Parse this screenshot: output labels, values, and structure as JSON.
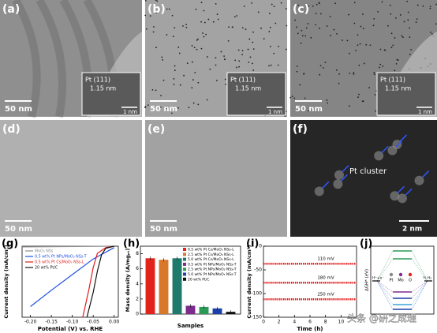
{
  "panels": [
    {
      "label": "(a)",
      "scale_bar": "50 nm",
      "inset": {
        "plane": "Pt (111)",
        "spacing": "1.15 nm",
        "scale_bar": "1 nm"
      }
    },
    {
      "label": "(b)",
      "scale_bar": "50 nm",
      "inset": {
        "plane": "Pt (111)",
        "spacing": "1.15 nm",
        "scale_bar": "1 nm"
      }
    },
    {
      "label": "(c)",
      "scale_bar": "50 nm",
      "inset": {
        "plane": "Pt (111)",
        "spacing": "1.15 nm",
        "scale_bar": "1 nm"
      }
    },
    {
      "label": "(d)",
      "scale_bar": "50 nm"
    },
    {
      "label": "(e)",
      "scale_bar": "50 nm"
    },
    {
      "label": "(f)",
      "annotation": "Pt cluster",
      "scale_bar": "2 nm"
    }
  ],
  "chart_data": [
    {
      "type": "line",
      "label": "(g)",
      "x_label": "Potential (V) vs. RHE",
      "y_label": "Current density (mA/cm²)",
      "xlim": [
        -0.22,
        0.01
      ],
      "ylim": [
        -100,
        0
      ],
      "xticks": [
        {
          "value": -0.2,
          "label": "-0.20"
        },
        {
          "value": -0.15,
          "label": "-0.15"
        },
        {
          "value": -0.1,
          "label": "-0.10"
        },
        {
          "value": -0.05,
          "label": "-0.05"
        },
        {
          "value": 0,
          "label": "0.00"
        }
      ],
      "legend": "upper left",
      "series": [
        {
          "name": "MoO₃ NSs",
          "color": "#8c8c8c",
          "x": [
            -0.22,
            0
          ],
          "values": [
            -1,
            0
          ]
        },
        {
          "name": "0.5 wt% Pt NPs/MoO₃ NSs-T",
          "color": "#1f4fe0",
          "x": [
            -0.2,
            -0.15,
            -0.1,
            -0.05,
            0
          ],
          "values": [
            -85,
            -62,
            -40,
            -18,
            -2
          ]
        },
        {
          "name": "0.5 wt% Pt Cs/MoO₃ NSs-L",
          "color": "#e01b1b",
          "x": [
            -0.075,
            -0.06,
            -0.05,
            -0.04,
            -0.02,
            0
          ],
          "values": [
            -100,
            -60,
            -30,
            -10,
            -2,
            0
          ]
        },
        {
          "name": "20 wt% Pt/C",
          "color": "#111111",
          "x": [
            -0.065,
            -0.05,
            -0.04,
            -0.03,
            -0.02,
            0
          ],
          "values": [
            -100,
            -65,
            -35,
            -12,
            -3,
            0
          ]
        }
      ]
    },
    {
      "type": "bar",
      "label": "(h)",
      "x_label": "Samples",
      "y_label": "Mass density (A/mgₚₜ)",
      "ylim": [
        0,
        9
      ],
      "yticks": [
        0,
        2,
        4,
        6,
        8
      ],
      "categories": [
        "0.5 wt% Pt Cs/MoO₃ NSs-L",
        "2.5 wt% Pt Cs/MoO₃ NSs-L",
        "5.0 wt% Pt Cs/MoO₃ NSs-L",
        "0.5 wt% Pt NPs/MoO₃ NSs-T",
        "2.5 wt% Pt NPs/MoO₃ NSs-T",
        "5.0 wt% Pt NPs/MoO₃ NSs-T",
        "20 wt% Pt/C"
      ],
      "values": [
        7.4,
        7.2,
        7.4,
        1.1,
        0.95,
        0.75,
        0.3
      ],
      "colors": [
        "#e2231a",
        "#d9782a",
        "#1f7a6b",
        "#7b2c8e",
        "#2a9a56",
        "#1d3fa8",
        "#111111"
      ]
    },
    {
      "type": "line",
      "label": "(i)",
      "x_label": "Time (h)",
      "y_label": "Current density (mA/cm²)",
      "xlim": [
        0,
        12
      ],
      "ylim": [
        -150,
        0
      ],
      "xticks": [
        0,
        2,
        4,
        6,
        8,
        10
      ],
      "yticks": [
        0,
        -50,
        -100,
        -150
      ],
      "series": [
        {
          "name": "110 mV",
          "color": "#e01b1b",
          "x": [
            0,
            12
          ],
          "values": [
            -37,
            -37
          ]
        },
        {
          "name": "180 mV",
          "color": "#e01b1b",
          "x": [
            0,
            12
          ],
          "values": [
            -77,
            -77
          ]
        },
        {
          "name": "250 mV",
          "color": "#e01b1b",
          "x": [
            0,
            12
          ],
          "values": [
            -112,
            -112
          ]
        }
      ]
    }
  ],
  "energy_diagram": {
    "label": "(j)",
    "y_label": "ΔGH* (eV)",
    "legend": [
      "Pt",
      "Mo",
      "O"
    ],
    "start": "H⁺+e⁻",
    "end": "½ H₂"
  },
  "watermark": "头条 @研之成理"
}
